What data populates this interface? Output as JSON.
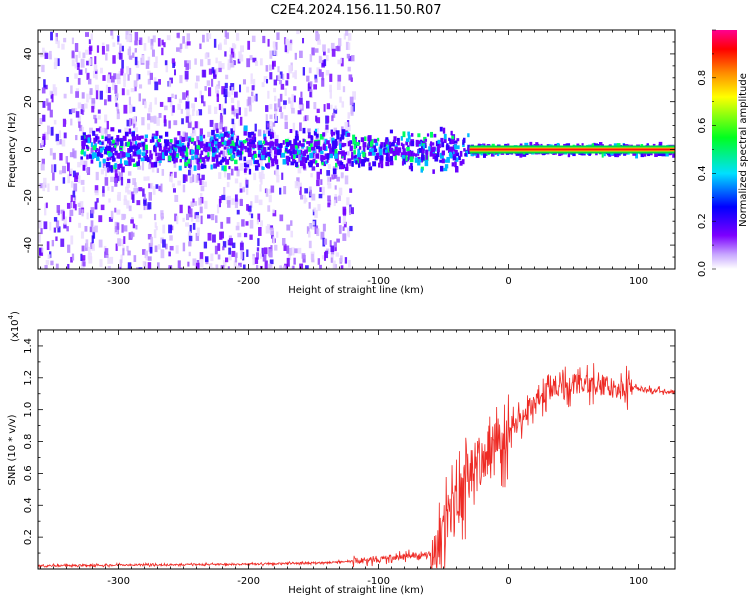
{
  "figure": {
    "title": "C2E4.2024.156.11.50.R07"
  },
  "chart_data": [
    {
      "type": "heatmap",
      "name": "spectrogram",
      "xlabel": "Height of straight line (km)",
      "ylabel": "Frequency (Hz)",
      "xlim": [
        -362,
        128
      ],
      "ylim": [
        -50,
        50
      ],
      "xticks": [
        -300,
        -200,
        -100,
        0,
        100
      ],
      "xtick_labels": [
        "-300",
        "-200",
        "-100",
        "0",
        "100"
      ],
      "yticks": [
        -40,
        -20,
        0,
        20,
        40
      ],
      "ytick_labels": [
        "-40",
        "-20",
        "0",
        "20",
        "40"
      ],
      "colorbar": {
        "label": "Normalized spectral amplitude",
        "range": [
          0,
          1
        ],
        "ticks": [
          0.0,
          0.2,
          0.4,
          0.6,
          0.8
        ],
        "tick_labels": [
          "0.0",
          "0.2",
          "0.4",
          "0.6",
          "0.8"
        ],
        "colormap": [
          "#ffffff",
          "#7d00ff",
          "#0000ff",
          "#00ffff",
          "#00ff00",
          "#ffff00",
          "#ff8000",
          "#ff0000",
          "#ff0080"
        ]
      },
      "features": {
        "noise_region_x": [
          -362,
          -120
        ],
        "band_center_hz": 0,
        "band_halfwidth_hz_left": 8,
        "band_halfwidth_hz_right": 2,
        "strong_line_x_from": -30
      }
    },
    {
      "type": "line",
      "name": "snr",
      "xlabel": "Height of straight line (km)",
      "ylabel": "SNR (10 * v/v)",
      "y_multiplier_label": "(x10",
      "y_multiplier_exp": "4",
      "y_multiplier_close": ")",
      "xlim": [
        -362,
        128
      ],
      "ylim": [
        0,
        1.5
      ],
      "xticks": [
        -300,
        -200,
        -100,
        0,
        100
      ],
      "xtick_labels": [
        "-300",
        "-200",
        "-100",
        "0",
        "100"
      ],
      "yticks": [
        0.2,
        0.4,
        0.6,
        0.8,
        1.0,
        1.2,
        1.4
      ],
      "ytick_labels": [
        "0.2",
        "0.4",
        "0.6",
        "0.8",
        "1.0",
        "1.2",
        "1.4"
      ],
      "line_color": "#ee2a24",
      "profile": {
        "x": [
          -362,
          -300,
          -200,
          -140,
          -120,
          -100,
          -80,
          -60,
          -50,
          -40,
          -30,
          -20,
          -10,
          0,
          10,
          20,
          30,
          40,
          60,
          80,
          100,
          128
        ],
        "y": [
          0.02,
          0.025,
          0.03,
          0.04,
          0.05,
          0.06,
          0.08,
          0.1,
          0.2,
          0.4,
          0.6,
          0.72,
          0.8,
          0.85,
          0.95,
          1.05,
          1.12,
          1.15,
          1.16,
          1.15,
          1.13,
          1.11
        ]
      }
    }
  ]
}
